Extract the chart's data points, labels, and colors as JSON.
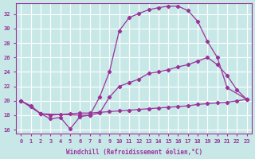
{
  "xlabel": "Windchill (Refroidissement éolien,°C)",
  "background_color": "#c8e8e8",
  "grid_color": "#ffffff",
  "line_color": "#993399",
  "x_ticks": [
    0,
    1,
    2,
    3,
    4,
    5,
    6,
    7,
    8,
    9,
    10,
    11,
    12,
    13,
    14,
    15,
    16,
    17,
    18,
    19,
    20,
    21,
    22,
    23
  ],
  "y_ticks": [
    16,
    18,
    20,
    22,
    24,
    26,
    28,
    30,
    32
  ],
  "xlim": [
    -0.5,
    23.5
  ],
  "ylim": [
    15.5,
    33.5
  ],
  "line1_x": [
    0,
    1,
    2,
    3,
    4,
    5,
    6,
    7,
    8,
    9,
    10,
    11,
    12,
    13,
    14,
    15,
    16,
    17,
    18,
    19,
    20,
    21,
    23
  ],
  "line1_y": [
    20.0,
    19.2,
    18.2,
    17.5,
    17.7,
    16.1,
    17.8,
    18.0,
    20.5,
    24.0,
    29.7,
    31.5,
    32.1,
    32.6,
    32.9,
    33.1,
    33.1,
    32.5,
    31.0,
    28.2,
    26.0,
    21.8,
    20.2
  ],
  "line2_x": [
    0,
    2,
    6,
    7,
    8,
    9,
    10,
    11,
    12,
    13,
    14,
    15,
    16,
    17,
    18,
    19,
    20,
    21,
    22,
    23
  ],
  "line2_y": [
    20.0,
    18.2,
    18.0,
    18.0,
    18.3,
    20.5,
    22.0,
    22.5,
    23.0,
    23.8,
    24.0,
    24.3,
    24.7,
    25.0,
    25.5,
    26.0,
    25.0,
    23.5,
    21.5,
    20.2
  ],
  "line3_x": [
    0,
    1,
    2,
    3,
    4,
    5,
    6,
    7,
    8,
    9,
    10,
    11,
    12,
    13,
    14,
    15,
    16,
    17,
    18,
    19,
    20,
    21,
    22,
    23
  ],
  "line3_y": [
    20.0,
    19.3,
    18.2,
    18.0,
    18.1,
    18.2,
    18.3,
    18.3,
    18.4,
    18.5,
    18.6,
    18.7,
    18.8,
    18.9,
    19.0,
    19.1,
    19.2,
    19.3,
    19.5,
    19.6,
    19.7,
    19.8,
    20.0,
    20.2
  ]
}
